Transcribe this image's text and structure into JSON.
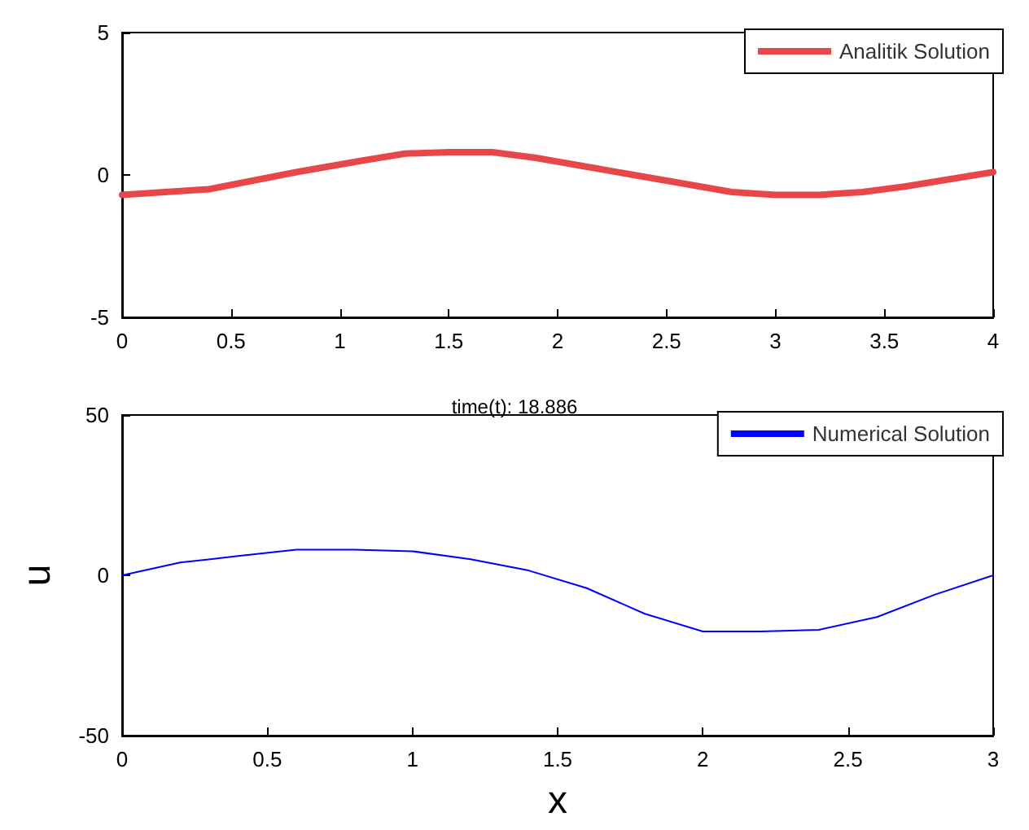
{
  "chart_data": [
    {
      "type": "line",
      "xlim": [
        0,
        4
      ],
      "xticks": [
        0,
        0.5,
        1,
        1.5,
        2,
        2.5,
        3,
        3.5,
        4
      ],
      "ylim": [
        -5,
        5
      ],
      "yticks": [
        -5,
        0,
        5
      ],
      "grid": false,
      "legend": "top right",
      "series": [
        {
          "name": "Analitik Solution",
          "color": "#e8474a",
          "x": [
            0,
            0.4,
            0.8,
            1.1,
            1.3,
            1.5,
            1.7,
            1.9,
            2.2,
            2.5,
            2.8,
            3.0,
            3.2,
            3.4,
            3.6,
            4.0
          ],
          "values": [
            -0.7,
            -0.5,
            0.1,
            0.5,
            0.75,
            0.8,
            0.8,
            0.6,
            0.2,
            -0.2,
            -0.6,
            -0.7,
            -0.7,
            -0.6,
            -0.4,
            0.1
          ]
        }
      ]
    },
    {
      "type": "line",
      "title": "time(t): 18.886",
      "xlabel": "x",
      "ylabel": "u",
      "xlim": [
        0,
        3
      ],
      "xticks": [
        0,
        0.5,
        1,
        1.5,
        2,
        2.5,
        3
      ],
      "ylim": [
        -50,
        50
      ],
      "yticks": [
        -50,
        0,
        50
      ],
      "grid": false,
      "legend": "top right",
      "series": [
        {
          "name": "Numerical Solution",
          "color": "#0000ff",
          "x": [
            0,
            0.2,
            0.4,
            0.6,
            0.8,
            1.0,
            1.2,
            1.4,
            1.6,
            1.8,
            2.0,
            2.2,
            2.4,
            2.6,
            2.8,
            3.0
          ],
          "values": [
            0,
            4,
            6,
            8,
            8,
            7.5,
            5,
            1.5,
            -4,
            -12,
            -17.5,
            -17.5,
            -17,
            -13,
            -6,
            0
          ]
        }
      ]
    }
  ]
}
